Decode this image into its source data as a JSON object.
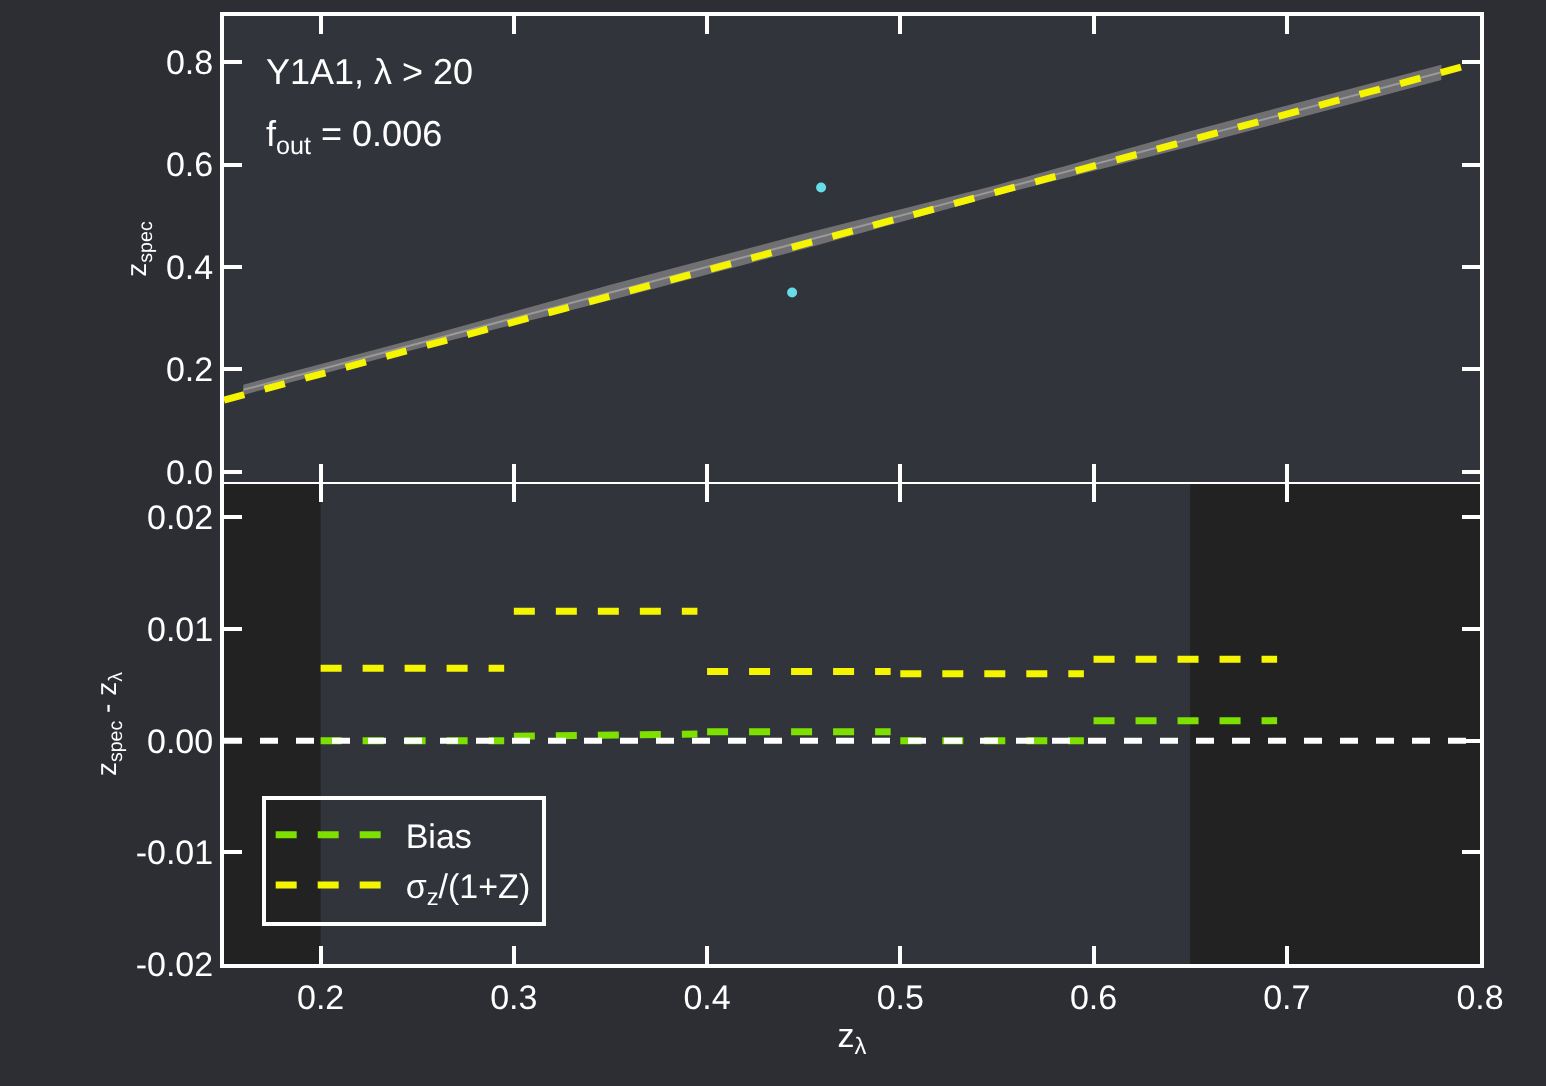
{
  "chart_data": [
    {
      "type": "line",
      "ylabel": "z$_{spec}$",
      "xlim": [
        0.15,
        0.8
      ],
      "ylim": [
        -0.02,
        0.89
      ],
      "xticks": [
        0.2,
        0.3,
        0.4,
        0.5,
        0.6,
        0.7,
        0.8
      ],
      "yticks": [
        {
          "value": 0,
          "label": "0.0"
        },
        0.2,
        0.4,
        0.6,
        0.8
      ],
      "tick_labels": "y",
      "grid": false,
      "legend": false,
      "annotations": [
        "Y1A1, λ > 20",
        "f$_{out}$ = 0.006"
      ],
      "series": [
        {
          "color": "#9a9a9a",
          "x": [
            0.16,
            0.25,
            0.35,
            0.45,
            0.55,
            0.65,
            0.78
          ],
          "values": [
            0.16,
            0.25,
            0.35,
            0.45,
            0.55,
            0.65,
            0.78
          ],
          "lower": [
            0.15,
            0.24,
            0.335,
            0.435,
            0.54,
            0.635,
            0.765
          ],
          "upper": [
            0.17,
            0.26,
            0.365,
            0.465,
            0.56,
            0.665,
            0.795
          ]
        },
        {
          "color": "#f5f500",
          "line_style": "dashed",
          "x": [
            0.15,
            0.8
          ],
          "values": [
            0.14,
            0.8
          ]
        },
        {
          "type": "scatter",
          "color": "#66dde8",
          "marker": "circle",
          "x": [
            0.459,
            0.444
          ],
          "values": [
            0.555,
            0.35
          ]
        }
      ]
    },
    {
      "type": "line",
      "xlabel": "z$_{λ}$",
      "ylabel": "z$_{spec}$ - z$_{λ}$",
      "xlim": [
        0.15,
        0.8
      ],
      "ylim": [
        -0.02,
        0.023
      ],
      "xticks": [
        0.2,
        0.3,
        0.4,
        0.5,
        0.6,
        0.7,
        0.8
      ],
      "yticks": [
        -0.02,
        -0.01,
        {
          "value": 0,
          "label": "0.00"
        },
        0.01,
        0.02
      ],
      "grid": false,
      "legend": "bottom left",
      "line_style": "dashed",
      "ref_lines": [
        {
          "axis": "y",
          "value": 0,
          "color": "#ffffff",
          "line_style": "dashed"
        }
      ],
      "bands": [
        {
          "axis": "x",
          "from": 0.15,
          "to": 0.2,
          "color": "#222222"
        },
        {
          "axis": "x",
          "from": 0.65,
          "to": 0.8,
          "color": "#222222"
        }
      ],
      "series": [
        {
          "name": "Bias",
          "color": "#7ee000",
          "x": [
            0.2,
            0.295,
            0.297,
            0.3,
            0.395,
            0.397,
            0.4,
            0.495,
            0.497,
            0.5,
            0.595,
            0.597,
            0.6,
            0.695
          ],
          "values": [
            0,
            0,
            null,
            0.0004,
            0.0006,
            null,
            0.0008,
            0.0008,
            null,
            0,
            0,
            null,
            0.0018,
            0.0018
          ]
        },
        {
          "name": "σ$_{z}$/(1+Z)",
          "color": "#f5f500",
          "x": [
            0.2,
            0.295,
            0.297,
            0.3,
            0.395,
            0.397,
            0.4,
            0.495,
            0.497,
            0.5,
            0.595,
            0.597,
            0.6,
            0.695
          ],
          "values": [
            0.0065,
            0.0065,
            null,
            0.0116,
            0.0116,
            null,
            0.0062,
            0.0062,
            null,
            0.006,
            0.006,
            null,
            0.0073,
            0.0073
          ]
        }
      ]
    }
  ]
}
